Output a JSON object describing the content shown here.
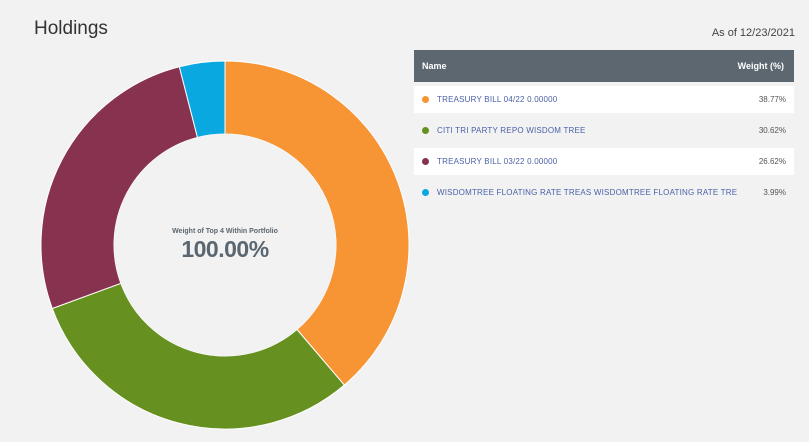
{
  "header": {
    "title": "Holdings",
    "as_of": "As of 12/23/2021"
  },
  "center": {
    "label": "Weight of Top 4 Within Portfolio",
    "value": "100.00%"
  },
  "table": {
    "col_name": "Name",
    "col_weight": "Weight (%)",
    "rows": [
      {
        "name": "TREASURY BILL 04/22 0.00000",
        "weight": "38.77%",
        "color": "#f79433"
      },
      {
        "name": "CITI TRI PARTY REPO WISDOM TREE",
        "weight": "30.62%",
        "color": "#66901f"
      },
      {
        "name": "TREASURY BILL 03/22 0.00000",
        "weight": "26.62%",
        "color": "#87324f"
      },
      {
        "name": "WISDOMTREE FLOATING RATE TREAS WISDOMTREE FLOATING RATE TRE",
        "weight": "3.99%",
        "color": "#0aa8e0"
      }
    ]
  },
  "chart_data": {
    "type": "pie",
    "title": "",
    "categories": [
      "TREASURY BILL 04/22 0.00000",
      "CITI TRI PARTY REPO WISDOM TREE",
      "TREASURY BILL 03/22 0.00000",
      "WISDOMTREE FLOATING RATE TREAS WISDOMTREE FLOATING RATE TRE"
    ],
    "values": [
      38.77,
      30.62,
      26.62,
      3.99
    ],
    "colors": [
      "#f79433",
      "#66901f",
      "#87324f",
      "#0aa8e0"
    ],
    "donut": true,
    "start": "top, clockwise"
  }
}
